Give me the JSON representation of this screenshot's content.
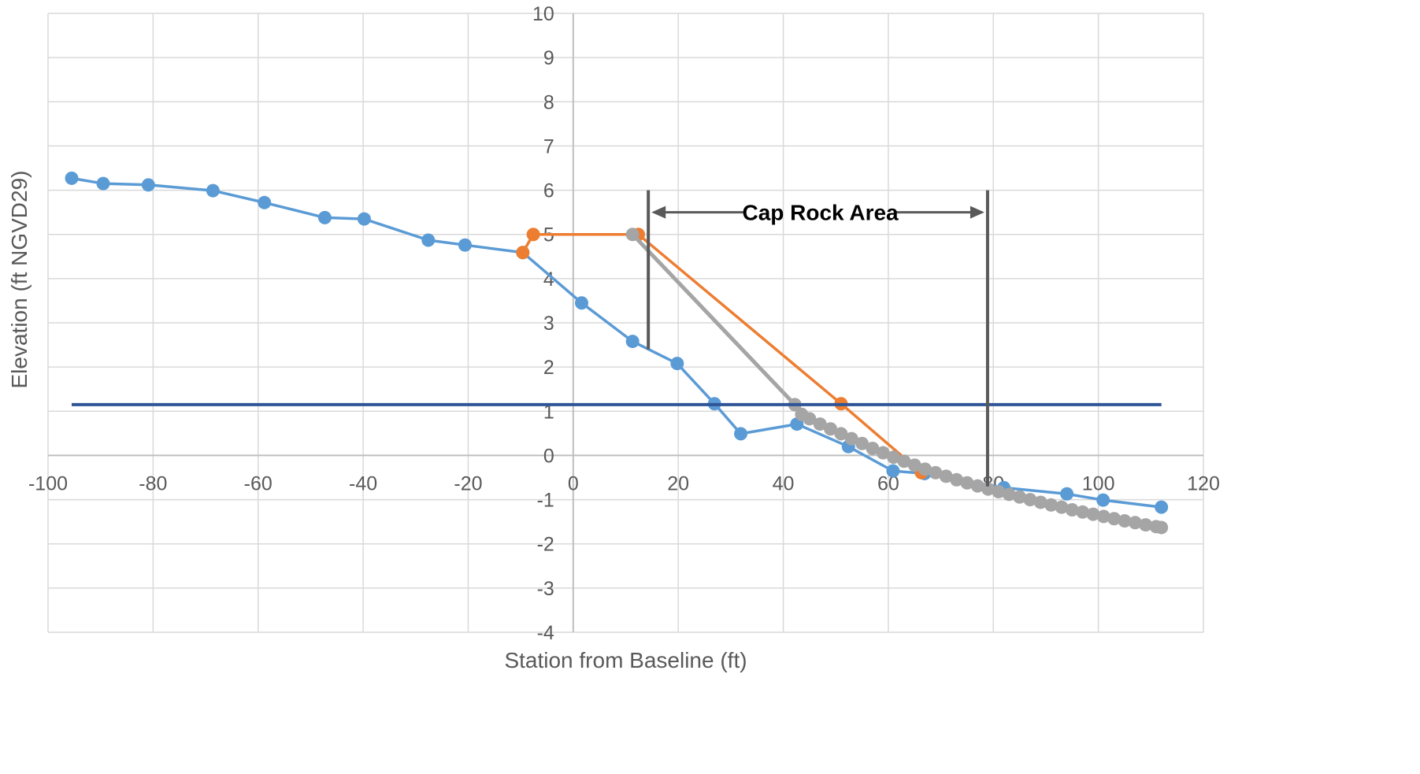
{
  "chart_data": {
    "type": "scatter",
    "title": "",
    "xlabel": "Station from Baseline (ft)",
    "ylabel": "Elevation (ft NGVD29)",
    "xlim": [
      -100,
      120
    ],
    "ylim": [
      -4,
      10
    ],
    "xticks": [
      -100,
      -80,
      -60,
      -40,
      -20,
      0,
      20,
      40,
      60,
      80,
      100,
      120
    ],
    "yticks": [
      -4,
      -3,
      -2,
      -1,
      0,
      1,
      2,
      3,
      4,
      5,
      6,
      7,
      8,
      9,
      10
    ],
    "grid": true,
    "legend": "none",
    "series": [
      {
        "color": "#5b9bd5",
        "markers": true,
        "points": [
          [
            -95.5,
            6.27
          ],
          [
            -89.5,
            6.15
          ],
          [
            -80.9,
            6.12
          ],
          [
            -68.6,
            5.99
          ],
          [
            -58.8,
            5.72
          ],
          [
            -47.3,
            5.38
          ],
          [
            -39.8,
            5.35
          ],
          [
            -27.6,
            4.87
          ],
          [
            -20.6,
            4.76
          ],
          [
            -9.6,
            4.59
          ],
          [
            1.6,
            3.45
          ],
          [
            11.3,
            2.58
          ],
          [
            19.8,
            2.08
          ],
          [
            26.9,
            1.17
          ],
          [
            31.9,
            0.49
          ],
          [
            42.6,
            0.71
          ],
          [
            52.4,
            0.2
          ],
          [
            60.9,
            -0.35
          ],
          [
            66.9,
            -0.41
          ],
          [
            82.0,
            -0.73
          ],
          [
            94.0,
            -0.87
          ],
          [
            100.9,
            -1.01
          ],
          [
            112.0,
            -1.17
          ]
        ]
      },
      {
        "color": "#ed7d31",
        "markers": true,
        "points": [
          [
            -9.6,
            4.59
          ],
          [
            -7.6,
            5.0
          ],
          [
            12.4,
            5.0
          ],
          [
            51.0,
            1.17
          ],
          [
            66.3,
            -0.39
          ]
        ]
      },
      {
        "color": "#a5a5a5",
        "markers": true,
        "points": [
          [
            11.3,
            5.0
          ],
          [
            42.2,
            1.15
          ],
          [
            43.5,
            0.93
          ],
          [
            45.0,
            0.83
          ],
          [
            47.0,
            0.71
          ],
          [
            49.0,
            0.6
          ],
          [
            51.0,
            0.49
          ],
          [
            53.0,
            0.38
          ],
          [
            55.0,
            0.27
          ],
          [
            57.0,
            0.16
          ],
          [
            59.0,
            0.06
          ],
          [
            61.0,
            -0.04
          ],
          [
            63.0,
            -0.13
          ],
          [
            65.0,
            -0.22
          ],
          [
            67.0,
            -0.31
          ],
          [
            69.0,
            -0.39
          ],
          [
            71.0,
            -0.47
          ],
          [
            73.0,
            -0.55
          ],
          [
            75.0,
            -0.62
          ],
          [
            77.0,
            -0.69
          ],
          [
            79.0,
            -0.76
          ],
          [
            81.0,
            -0.82
          ],
          [
            83.0,
            -0.88
          ],
          [
            85.0,
            -0.94
          ],
          [
            87.0,
            -1.0
          ],
          [
            89.0,
            -1.06
          ],
          [
            91.0,
            -1.12
          ],
          [
            93.0,
            -1.17
          ],
          [
            95.0,
            -1.23
          ],
          [
            97.0,
            -1.28
          ],
          [
            99.0,
            -1.33
          ],
          [
            101.0,
            -1.38
          ],
          [
            103.0,
            -1.43
          ],
          [
            105.0,
            -1.48
          ],
          [
            107.0,
            -1.52
          ],
          [
            109.0,
            -1.57
          ],
          [
            111.0,
            -1.61
          ],
          [
            112.0,
            -1.63
          ]
        ]
      },
      {
        "color": "#2f5597",
        "markers": false,
        "points": [
          [
            -95.5,
            1.15
          ],
          [
            112.0,
            1.15
          ]
        ]
      }
    ],
    "annotations": {
      "text": "Cap Rock Area",
      "left_boundary": {
        "x": 14.3,
        "y_from": 2.4,
        "y_to": 6.0
      },
      "right_boundary": {
        "x": 78.9,
        "y_from": -0.7,
        "y_to": 6.0
      },
      "arrow_y": 5.5,
      "color": "#595959"
    }
  }
}
